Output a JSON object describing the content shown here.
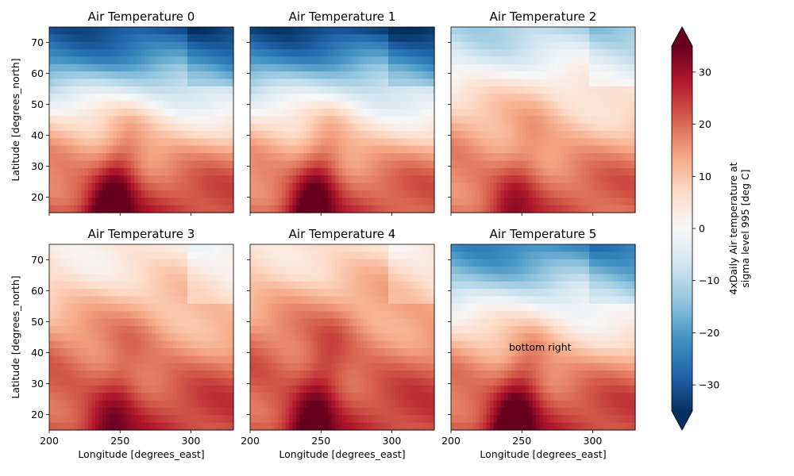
{
  "chart_data": {
    "type": "heatmap",
    "panel_titles": [
      "Air Temperature 0",
      "Air Temperature 1",
      "Air Temperature 2",
      "Air Temperature 3",
      "Air Temperature 4",
      "Air Temperature 5"
    ],
    "xlabel": "Longitude [degrees_east]",
    "ylabel": "Latitude [degrees_north]",
    "xlim": [
      200,
      330
    ],
    "ylim": [
      15,
      75
    ],
    "xticks": [
      200,
      250,
      300
    ],
    "yticks": [
      20,
      30,
      40,
      50,
      60,
      70
    ],
    "colorbar": {
      "label_line1": "4xDaily Air temperature at",
      "label_line2": "sigma level 995 [deg C]",
      "vmin": -35,
      "vmax": 35,
      "ticks": [
        -30,
        -20,
        -10,
        0,
        10,
        20,
        30
      ],
      "colormap": "RdBu_r",
      "extend": "both"
    },
    "annotation": {
      "panel": 5,
      "text": "bottom right"
    },
    "fields": [
      {
        "base": -29,
        "s1": [
          -32,
          -30,
          -25,
          -16,
          -6,
          4
        ],
        "s2": [
          -30,
          -28,
          -24,
          -18,
          -10,
          -2
        ],
        "profile": [
          24,
          20,
          14,
          5,
          -8,
          -22,
          -30
        ],
        "feature": "trough"
      },
      {
        "base": -31,
        "s1": [
          -33,
          -31,
          -27,
          -18,
          -8,
          2
        ],
        "s2": [
          -32,
          -29,
          -26,
          -20,
          -12,
          -4
        ],
        "profile": [
          22,
          19,
          13,
          4,
          -8,
          -22,
          -32
        ],
        "feature": "trough"
      },
      {
        "base": -8,
        "s1": [
          -10,
          -9,
          -8,
          -6,
          -4,
          -2
        ],
        "s2": [
          -9,
          -8,
          -7,
          -6,
          -4,
          -2
        ],
        "profile": [
          21,
          19,
          15,
          10,
          4,
          -4,
          -10
        ],
        "feature": "warm"
      },
      {
        "base": 6,
        "s1": [
          8,
          6,
          4,
          2,
          0,
          -3
        ],
        "s2": [
          6,
          5,
          3,
          1,
          -2,
          -6
        ],
        "profile": [
          24,
          22,
          19,
          15,
          10,
          6,
          4
        ],
        "feature": "warm"
      },
      {
        "base": 8,
        "s1": [
          10,
          8,
          6,
          3,
          0,
          -4
        ],
        "s2": [
          8,
          6,
          4,
          2,
          -2,
          -8
        ],
        "profile": [
          24,
          22,
          20,
          17,
          13,
          9,
          6
        ],
        "feature": "hot"
      },
      {
        "base": -20,
        "s1": [
          -24,
          -20,
          -16,
          -10,
          -5,
          2
        ],
        "s2": [
          -26,
          -22,
          -18,
          -14,
          -10,
          -6
        ],
        "profile": [
          24,
          21,
          16,
          8,
          -2,
          -14,
          -22
        ],
        "feature": "trough"
      }
    ]
  }
}
